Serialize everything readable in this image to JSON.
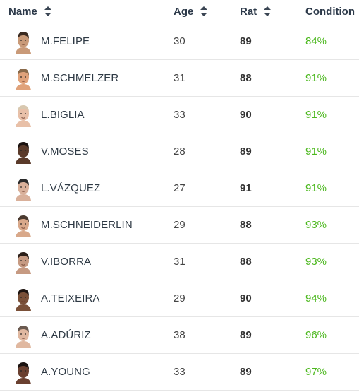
{
  "headers": {
    "name": "Name",
    "age": "Age",
    "rat": "Rat",
    "condition": "Condition"
  },
  "colors": {
    "condition": "#4cb81e",
    "header_text": "#2d3a4a"
  },
  "players": [
    {
      "name": "M.FELIPE",
      "age": "30",
      "rat": "89",
      "condition": "84%",
      "skin": "#c99a78",
      "hair": "#3a2a20"
    },
    {
      "name": "M.SCHMELZER",
      "age": "31",
      "rat": "88",
      "condition": "91%",
      "skin": "#e0a27a",
      "hair": "#8a6a4a"
    },
    {
      "name": "L.BIGLIA",
      "age": "33",
      "rat": "90",
      "condition": "91%",
      "skin": "#e8c0a8",
      "hair": "#d8c8b0"
    },
    {
      "name": "V.MOSES",
      "age": "28",
      "rat": "89",
      "condition": "91%",
      "skin": "#5a3a2a",
      "hair": "#1a1210"
    },
    {
      "name": "L.VÁZQUEZ",
      "age": "27",
      "rat": "91",
      "condition": "91%",
      "skin": "#d9b09a",
      "hair": "#2a2a2a"
    },
    {
      "name": "M.SCHNEIDERLIN",
      "age": "29",
      "rat": "88",
      "condition": "93%",
      "skin": "#d8a88a",
      "hair": "#4a3a30"
    },
    {
      "name": "V.IBORRA",
      "age": "31",
      "rat": "88",
      "condition": "93%",
      "skin": "#c69a82",
      "hair": "#2a1e18"
    },
    {
      "name": "A.TEIXEIRA",
      "age": "29",
      "rat": "90",
      "condition": "94%",
      "skin": "#7a5038",
      "hair": "#1e1410"
    },
    {
      "name": "A.ADÚRIZ",
      "age": "38",
      "rat": "89",
      "condition": "96%",
      "skin": "#e0b8a0",
      "hair": "#6a5a50"
    },
    {
      "name": "A.YOUNG",
      "age": "33",
      "rat": "89",
      "condition": "97%",
      "skin": "#6a4030",
      "hair": "#1a1210"
    }
  ]
}
